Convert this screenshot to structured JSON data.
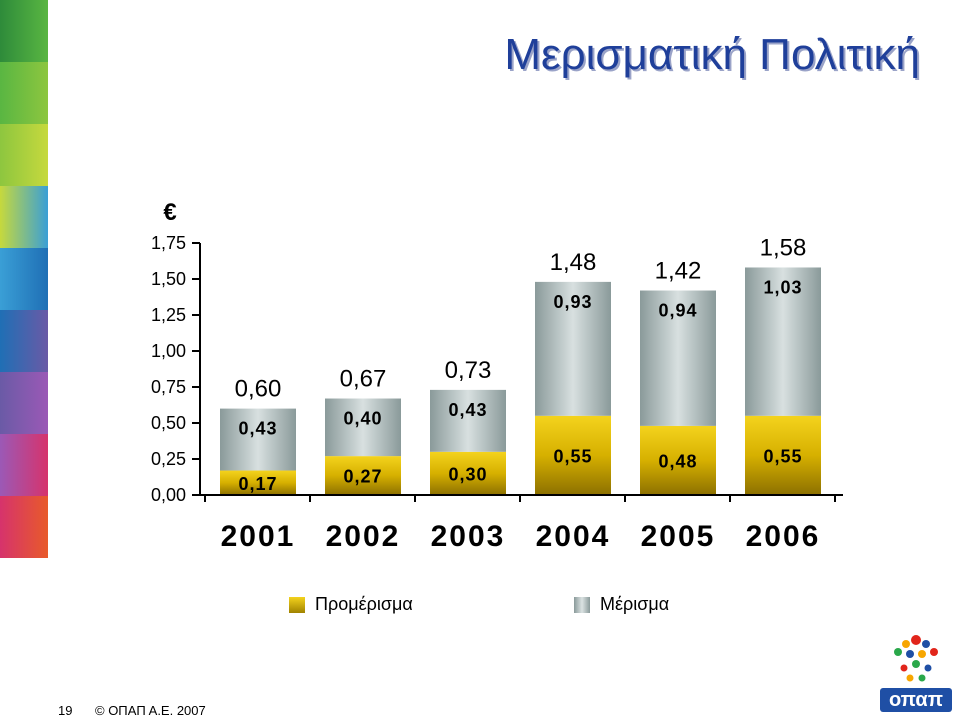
{
  "slide": {
    "title": "Μερισματική Πολιτική",
    "currency_symbol": "€",
    "page_number": "19",
    "copyright": "© ΟΠΑΠ Α.Ε. 2007",
    "logo_text": "οπαπ"
  },
  "legend": {
    "items": [
      {
        "label": "Προμέρισμα",
        "color": "#c9a400"
      },
      {
        "label": "Μέρισμα",
        "color": "#a9b8b8"
      }
    ]
  },
  "chart_data": {
    "type": "bar",
    "stacked": true,
    "categories": [
      "2001",
      "2002",
      "2003",
      "2004",
      "2005",
      "2006"
    ],
    "series": [
      {
        "name": "Προμέρισμα",
        "color": "#c9a400",
        "values": [
          0.17,
          0.27,
          0.3,
          0.55,
          0.48,
          0.55
        ],
        "labels": [
          "0,17",
          "0,27",
          "0,30",
          "0,55",
          "0,48",
          "0,55"
        ]
      },
      {
        "name": "Μέρισμα",
        "color": "#a9b8b8",
        "values": [
          0.43,
          0.4,
          0.43,
          0.93,
          0.94,
          1.03
        ],
        "labels": [
          "0,43",
          "0,40",
          "0,43",
          "0,93",
          "0,94",
          "1,03"
        ]
      }
    ],
    "totals": [
      0.6,
      0.67,
      0.73,
      1.48,
      1.42,
      1.58
    ],
    "total_labels": [
      "0,60",
      "0,67",
      "0,73",
      "1,48",
      "1,42",
      "1,58"
    ],
    "y_ticks": [
      0,
      0.25,
      0.5,
      0.75,
      1.0,
      1.25,
      1.5,
      1.75
    ],
    "y_tick_labels": [
      "0,00",
      "0,25",
      "0,50",
      "0,75",
      "1,00",
      "1,25",
      "1,50",
      "1,75"
    ],
    "ylim": [
      0,
      1.75
    ],
    "ylabel": "€",
    "grid": false,
    "legend_position": "bottom"
  }
}
